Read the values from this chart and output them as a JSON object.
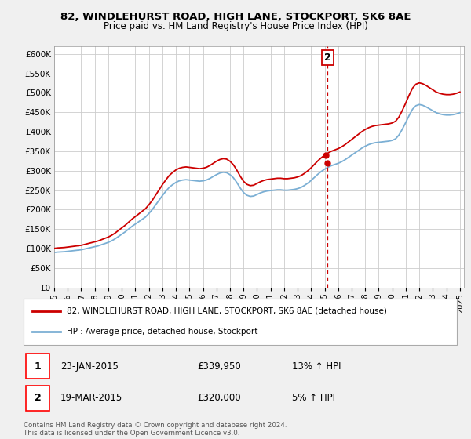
{
  "title": "82, WINDLEHURST ROAD, HIGH LANE, STOCKPORT, SK6 8AE",
  "subtitle": "Price paid vs. HM Land Registry's House Price Index (HPI)",
  "ylim": [
    0,
    620000
  ],
  "yticks": [
    0,
    50000,
    100000,
    150000,
    200000,
    250000,
    300000,
    350000,
    400000,
    450000,
    500000,
    550000,
    600000
  ],
  "legend_line1": "82, WINDLEHURST ROAD, HIGH LANE, STOCKPORT, SK6 8AE (detached house)",
  "legend_line2": "HPI: Average price, detached house, Stockport",
  "line_color": "#cc0000",
  "hpi_color": "#7bafd4",
  "annotation1_label": "1",
  "annotation1_date": "23-JAN-2015",
  "annotation1_price": "£339,950",
  "annotation1_hpi": "13% ↑ HPI",
  "annotation2_label": "2",
  "annotation2_date": "19-MAR-2015",
  "annotation2_price": "£320,000",
  "annotation2_hpi": "5% ↑ HPI",
  "footer": "Contains HM Land Registry data © Crown copyright and database right 2024.\nThis data is licensed under the Open Government Licence v3.0.",
  "bg_color": "#f0f0f0",
  "plot_bg": "#ffffff",
  "grid_color": "#cccccc",
  "hpi_x": [
    1995.0,
    1995.25,
    1995.5,
    1995.75,
    1996.0,
    1996.25,
    1996.5,
    1996.75,
    1997.0,
    1997.25,
    1997.5,
    1997.75,
    1998.0,
    1998.25,
    1998.5,
    1998.75,
    1999.0,
    1999.25,
    1999.5,
    1999.75,
    2000.0,
    2000.25,
    2000.5,
    2000.75,
    2001.0,
    2001.25,
    2001.5,
    2001.75,
    2002.0,
    2002.25,
    2002.5,
    2002.75,
    2003.0,
    2003.25,
    2003.5,
    2003.75,
    2004.0,
    2004.25,
    2004.5,
    2004.75,
    2005.0,
    2005.25,
    2005.5,
    2005.75,
    2006.0,
    2006.25,
    2006.5,
    2006.75,
    2007.0,
    2007.25,
    2007.5,
    2007.75,
    2008.0,
    2008.25,
    2008.5,
    2008.75,
    2009.0,
    2009.25,
    2009.5,
    2009.75,
    2010.0,
    2010.25,
    2010.5,
    2010.75,
    2011.0,
    2011.25,
    2011.5,
    2011.75,
    2012.0,
    2012.25,
    2012.5,
    2012.75,
    2013.0,
    2013.25,
    2013.5,
    2013.75,
    2014.0,
    2014.25,
    2014.5,
    2014.75,
    2015.0,
    2015.25,
    2015.5,
    2015.75,
    2016.0,
    2016.25,
    2016.5,
    2016.75,
    2017.0,
    2017.25,
    2017.5,
    2017.75,
    2018.0,
    2018.25,
    2018.5,
    2018.75,
    2019.0,
    2019.25,
    2019.5,
    2019.75,
    2020.0,
    2020.25,
    2020.5,
    2020.75,
    2021.0,
    2021.25,
    2021.5,
    2021.75,
    2022.0,
    2022.25,
    2022.5,
    2022.75,
    2023.0,
    2023.25,
    2023.5,
    2023.75,
    2024.0,
    2024.25,
    2024.5,
    2024.75,
    2025.0
  ],
  "hpi_y": [
    90000,
    91000,
    91500,
    92000,
    93000,
    94000,
    95000,
    96000,
    97000,
    99000,
    101000,
    103000,
    105000,
    107000,
    110000,
    113000,
    116000,
    120000,
    125000,
    131000,
    137000,
    143000,
    150000,
    157000,
    163000,
    169000,
    175000,
    181000,
    190000,
    200000,
    212000,
    224000,
    236000,
    247000,
    257000,
    264000,
    270000,
    274000,
    276000,
    277000,
    276000,
    275000,
    274000,
    273000,
    274000,
    276000,
    280000,
    285000,
    290000,
    294000,
    296000,
    295000,
    290000,
    282000,
    270000,
    256000,
    244000,
    237000,
    234000,
    235000,
    239000,
    243000,
    246000,
    248000,
    249000,
    250000,
    251000,
    251000,
    250000,
    250000,
    251000,
    252000,
    254000,
    257000,
    262000,
    268000,
    275000,
    283000,
    291000,
    298000,
    304000,
    309000,
    313000,
    316000,
    319000,
    323000,
    328000,
    334000,
    340000,
    346000,
    352000,
    358000,
    363000,
    367000,
    370000,
    372000,
    373000,
    374000,
    375000,
    376000,
    378000,
    382000,
    392000,
    407000,
    424000,
    442000,
    458000,
    467000,
    470000,
    468000,
    464000,
    459000,
    454000,
    449000,
    446000,
    444000,
    443000,
    443000,
    444000,
    446000,
    449000
  ],
  "sale1_x": 2015.06,
  "sale1_y": 339950,
  "sale2_x": 2015.22,
  "sale2_y": 320000,
  "marker2_x": 2015.22,
  "marker2_y": 320000,
  "xtick_years": [
    1995,
    1996,
    1997,
    1998,
    1999,
    2000,
    2001,
    2002,
    2003,
    2004,
    2005,
    2006,
    2007,
    2008,
    2009,
    2010,
    2011,
    2012,
    2013,
    2014,
    2015,
    2016,
    2017,
    2018,
    2019,
    2020,
    2021,
    2022,
    2023,
    2024,
    2025
  ]
}
